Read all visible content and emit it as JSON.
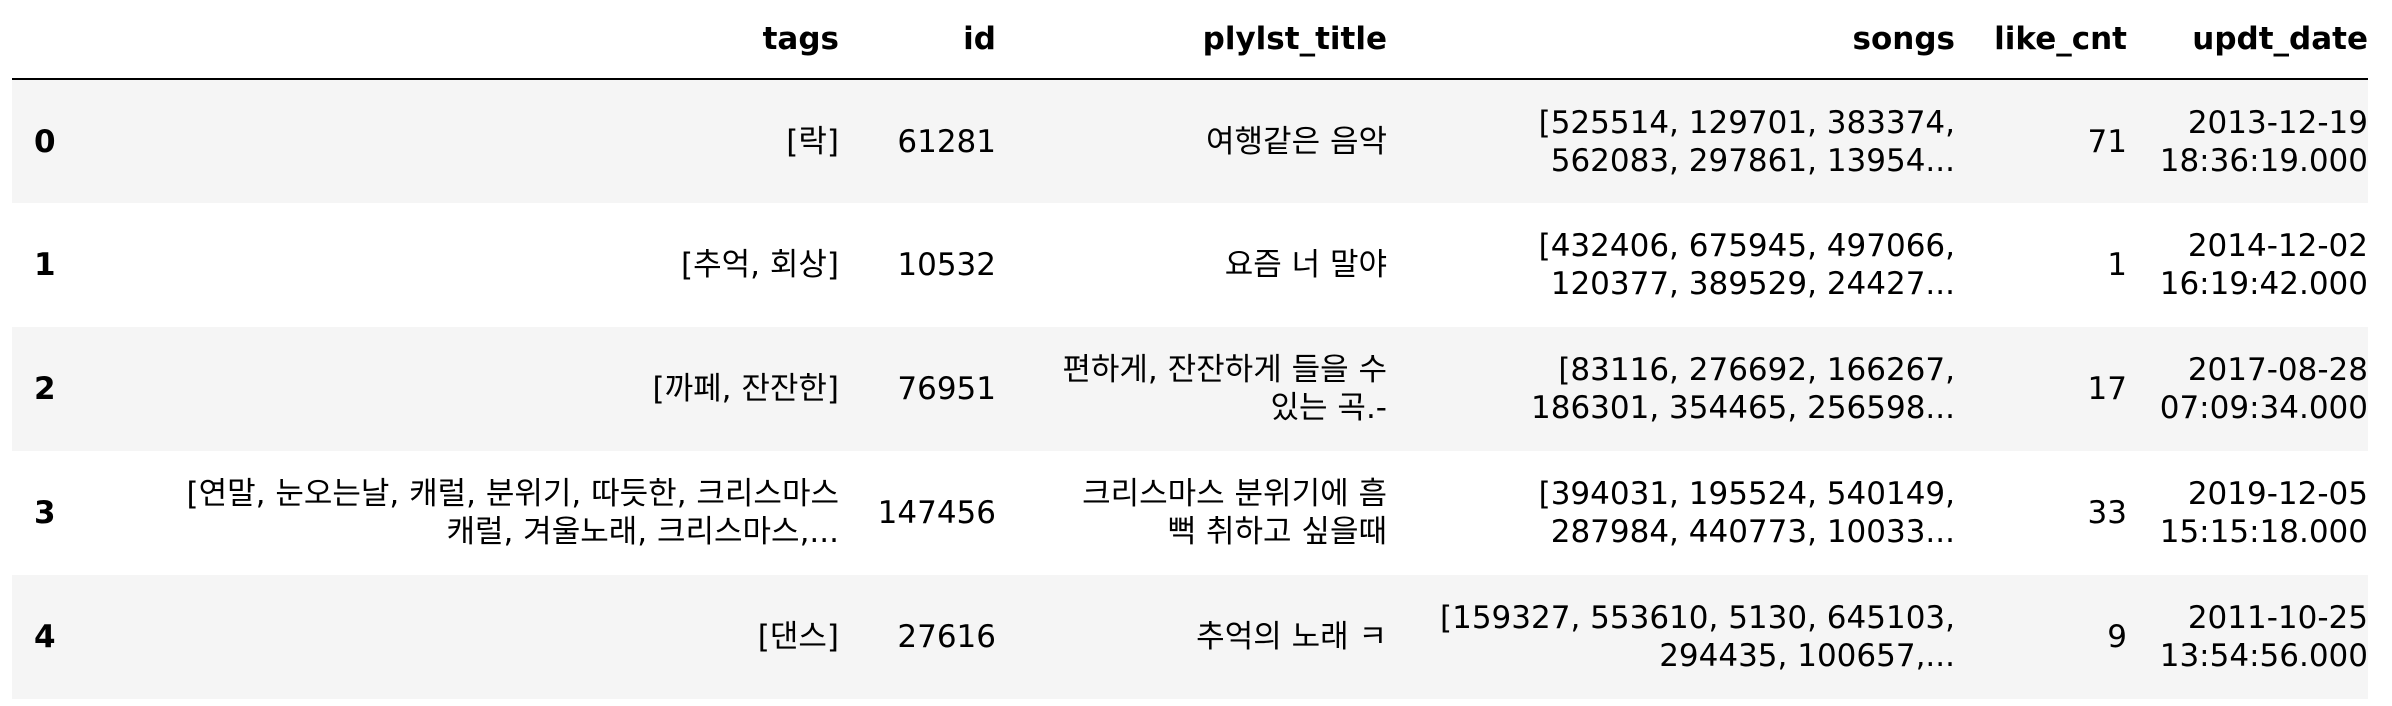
{
  "table": {
    "columns": [
      "",
      "tags",
      "id",
      "plylst_title",
      "songs",
      "like_cnt",
      "updt_date"
    ],
    "rows": [
      {
        "index": "0",
        "tags": [
          "[락]"
        ],
        "id": "61281",
        "plylst_title": [
          "여행같은 음악"
        ],
        "songs": [
          "[525514, 129701, 383374,",
          "562083, 297861, 13954..."
        ],
        "like_cnt": "71",
        "updt_date": [
          "2013-12-19",
          "18:36:19.000"
        ]
      },
      {
        "index": "1",
        "tags": [
          "[추억, 회상]"
        ],
        "id": "10532",
        "plylst_title": [
          "요즘 너 말야"
        ],
        "songs": [
          "[432406, 675945, 497066,",
          "120377, 389529, 24427..."
        ],
        "like_cnt": "1",
        "updt_date": [
          "2014-12-02",
          "16:19:42.000"
        ]
      },
      {
        "index": "2",
        "tags": [
          "[까페, 잔잔한]"
        ],
        "id": "76951",
        "plylst_title": [
          "편하게, 잔잔하게 들을 수",
          "있는 곡.-"
        ],
        "songs": [
          "[83116, 276692, 166267,",
          "186301, 354465, 256598..."
        ],
        "like_cnt": "17",
        "updt_date": [
          "2017-08-28",
          "07:09:34.000"
        ]
      },
      {
        "index": "3",
        "tags": [
          "[연말, 눈오는날, 캐럴, 분위기, 따듯한, 크리스마스",
          "캐럴, 겨울노래, 크리스마스,..."
        ],
        "id": "147456",
        "plylst_title": [
          "크리스마스 분위기에 흠",
          "뻑 취하고 싶을때"
        ],
        "songs": [
          "[394031, 195524, 540149,",
          "287984, 440773, 10033..."
        ],
        "like_cnt": "33",
        "updt_date": [
          "2019-12-05",
          "15:15:18.000"
        ]
      },
      {
        "index": "4",
        "tags": [
          "[댄스]"
        ],
        "id": "27616",
        "plylst_title": [
          "추억의 노래 ㅋ"
        ],
        "songs": [
          "[159327, 553610, 5130, 645103,",
          "294435, 100657,..."
        ],
        "like_cnt": "9",
        "updt_date": [
          "2011-10-25",
          "13:54:56.000"
        ]
      }
    ]
  }
}
